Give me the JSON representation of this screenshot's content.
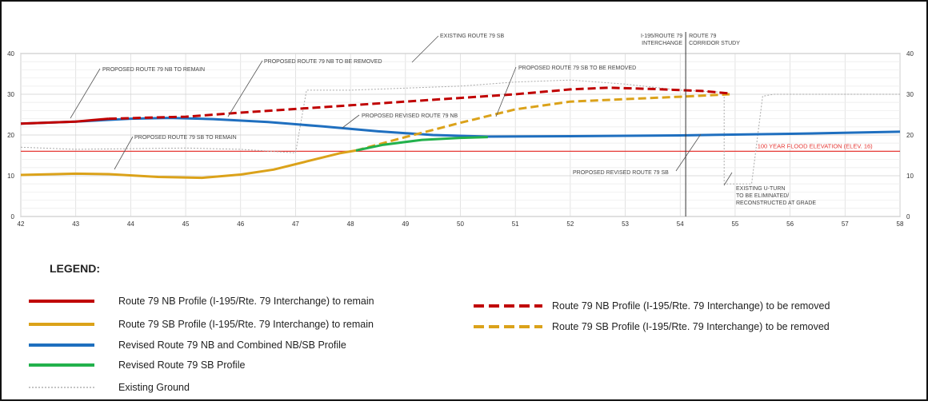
{
  "chart_data": {
    "type": "line",
    "xlabel": "",
    "ylabel": "",
    "xlim": [
      42,
      58
    ],
    "ylim": [
      0,
      40
    ],
    "x_ticks": [
      42,
      43,
      44,
      45,
      46,
      47,
      48,
      49,
      50,
      51,
      52,
      53,
      54,
      55,
      56,
      57,
      58
    ],
    "y_ticks": [
      0,
      10,
      20,
      30,
      40
    ],
    "grid": true,
    "series": [
      {
        "name": "Route 79 NB Profile (I-195/Rte. 79 Interchange) to remain",
        "color": "#c00000",
        "dash": "solid",
        "x": [
          42,
          43,
          43.6
        ],
        "y": [
          22.8,
          23.3,
          24
        ]
      },
      {
        "name": "Route 79 NB Profile (I-195/Rte. 79 Interchange) to be removed",
        "color": "#c00000",
        "dash": "dashed",
        "x": [
          43.6,
          45,
          46,
          47,
          48,
          49,
          50,
          51,
          52,
          52.7,
          53.5,
          54.4,
          54.9
        ],
        "y": [
          24,
          24.5,
          25.5,
          26.4,
          27.3,
          28.2,
          29.1,
          30,
          31.2,
          31.6,
          31.3,
          30.8,
          30.2
        ]
      },
      {
        "name": "Route 79 SB Profile (I-195/Rte. 79 Interchange) to remain",
        "color": "#dba21a",
        "dash": "solid",
        "x": [
          42,
          43,
          43.6,
          44.5,
          45.3,
          46,
          46.6,
          47.2,
          47.8,
          48.1
        ],
        "y": [
          10.2,
          10.5,
          10.4,
          9.7,
          9.5,
          10.3,
          11.5,
          13.5,
          15.5,
          16.2
        ]
      },
      {
        "name": "Route 79 SB Profile (I-195/Rte. 79 Interchange) to be removed",
        "color": "#dba21a",
        "dash": "dashed",
        "x": [
          48.1,
          49,
          50,
          51,
          52,
          53,
          54,
          54.9
        ],
        "y": [
          16.2,
          19.5,
          23,
          26.3,
          28.2,
          28.8,
          29.4,
          30
        ]
      },
      {
        "name": "Revised Route 79 NB and Combined NB/SB Profile",
        "color": "#1f6fbf",
        "dash": "solid",
        "x": [
          42,
          43,
          44,
          44.7,
          45.5,
          46.5,
          47.5,
          48.5,
          49.5,
          50.5,
          52,
          54,
          56,
          58
        ],
        "y": [
          22.8,
          23.3,
          24,
          24.2,
          23.9,
          23.2,
          22.1,
          20.9,
          20,
          19.6,
          19.7,
          19.9,
          20.3,
          20.8
        ]
      },
      {
        "name": "Revised Route 79 SB Profile",
        "color": "#22b14c",
        "dash": "solid",
        "x": [
          48.1,
          48.6,
          49.3,
          50,
          50.5
        ],
        "y": [
          16.2,
          17.6,
          18.8,
          19.3,
          19.5
        ]
      },
      {
        "name": "Existing Ground",
        "color": "#aaaaaa",
        "dash": "dotted",
        "x": [
          42,
          43,
          45,
          46,
          47,
          47.2,
          48,
          49,
          50,
          51,
          52,
          53,
          54,
          54.8,
          54.8,
          55.3,
          55.5,
          55.7,
          58
        ],
        "y": [
          17,
          16.5,
          16.8,
          16.5,
          15.6,
          31,
          31,
          31.5,
          32,
          33,
          33.5,
          32.5,
          31,
          30.5,
          8,
          8,
          29.5,
          30,
          30
        ]
      }
    ],
    "reference_lines": [
      {
        "label": "100 YEAR FLOOD ELEVATION (ELEV. 16)",
        "y": 16,
        "color": "#e53935"
      }
    ],
    "annotations": [
      {
        "text": "EXISTING ROUTE 79 SB"
      },
      {
        "text": "PROPOSED ROUTE 79 NB TO REMAIN"
      },
      {
        "text": "PROPOSED ROUTE 79 NB TO BE REMOVED"
      },
      {
        "text": "PROPOSED ROUTE 79 SB TO BE REMOVED"
      },
      {
        "text": "PROPOSED REVISED ROUTE 79 NB"
      },
      {
        "text": "PROPOSED ROUTE 79 SB TO REMAIN"
      },
      {
        "text": "PROPOSED REVISED ROUTE 79 SB"
      },
      {
        "text": "EXISTING U-TURN"
      },
      {
        "text": "TO BE ELIMINATED/"
      },
      {
        "text": "RECONSTRUCTED AT GRADE"
      }
    ],
    "divider": {
      "x": 54.1,
      "left": [
        "I-195/ROUTE 79",
        "INTERCHANGE"
      ],
      "right": [
        "ROUTE 79",
        "CORRIDOR STUDY"
      ]
    },
    "legend": {
      "title": "LEGEND:",
      "items": [
        {
          "label": "Route 79 NB Profile (I-195/Rte. 79 Interchange) to remain",
          "color": "#c00000",
          "dash": "solid"
        },
        {
          "label": "Route 79 SB Profile (I-195/Rte. 79 Interchange) to remain",
          "color": "#dba21a",
          "dash": "solid"
        },
        {
          "label": "Revised Route 79 NB and Combined NB/SB Profile",
          "color": "#1f6fbf",
          "dash": "solid"
        },
        {
          "label": "Revised Route 79 SB Profile",
          "color": "#22b14c",
          "dash": "solid"
        },
        {
          "label": "Existing Ground",
          "color": "#888888",
          "dash": "dotted"
        },
        {
          "label": "Route 79 NB Profile (I-195/Rte. 79 Interchange) to be removed",
          "color": "#c00000",
          "dash": "dashed"
        },
        {
          "label": "Route 79 SB Profile (I-195/Rte. 79 Interchange) to be removed",
          "color": "#dba21a",
          "dash": "dashed"
        }
      ]
    }
  }
}
